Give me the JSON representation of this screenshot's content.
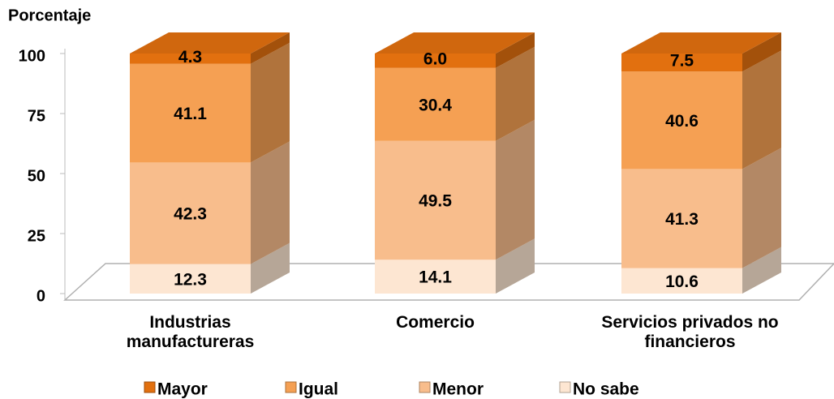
{
  "chart_data": {
    "type": "bar3d_stacked",
    "y_axis_label": "Porcentaje",
    "categories": [
      "Industrias manufactureras",
      "Comercio",
      "Servicios privados no financieros"
    ],
    "series": [
      {
        "name": "No sabe",
        "color": "#fde6d2",
        "values": [
          12.3,
          14.1,
          10.6
        ]
      },
      {
        "name": "Menor",
        "color": "#f8bd8c",
        "values": [
          42.3,
          49.5,
          41.3
        ]
      },
      {
        "name": "Igual",
        "color": "#f5a053",
        "values": [
          41.1,
          30.4,
          40.6
        ]
      },
      {
        "name": "Mayor",
        "color": "#e2700f",
        "values": [
          4.3,
          6.0,
          7.5
        ],
        "value_labels": [
          "4.3",
          "6.0",
          "7.5"
        ]
      }
    ],
    "ylim": [
      0,
      100
    ],
    "yticks": [
      0,
      25,
      50,
      75,
      100
    ],
    "legend": "bottom"
  }
}
